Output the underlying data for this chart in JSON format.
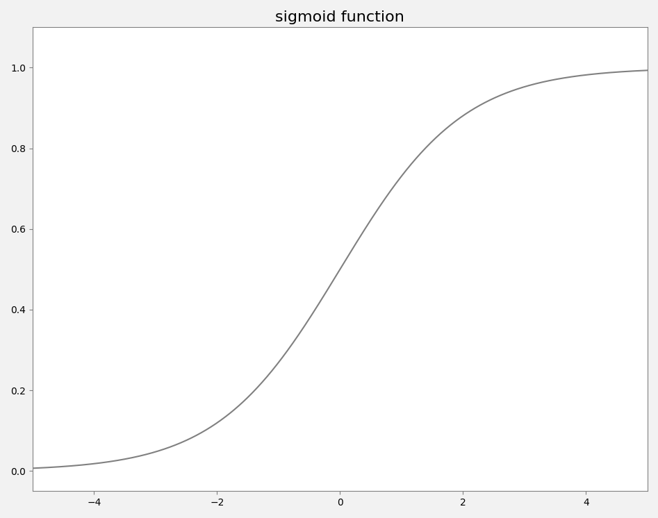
{
  "title": "sigmoid function",
  "xlim": [
    -5,
    5
  ],
  "ylim": [
    -0.05,
    1.1
  ],
  "line_color": "#808080",
  "line_width": 1.5,
  "background_color": "#f2f2f2",
  "axes_background": "#ffffff",
  "title_fontsize": 16,
  "xticks": [
    -4,
    -2,
    0,
    2,
    4
  ],
  "yticks": [
    0.0,
    0.2,
    0.4,
    0.6,
    0.8,
    1.0
  ],
  "spine_color": "#808080"
}
